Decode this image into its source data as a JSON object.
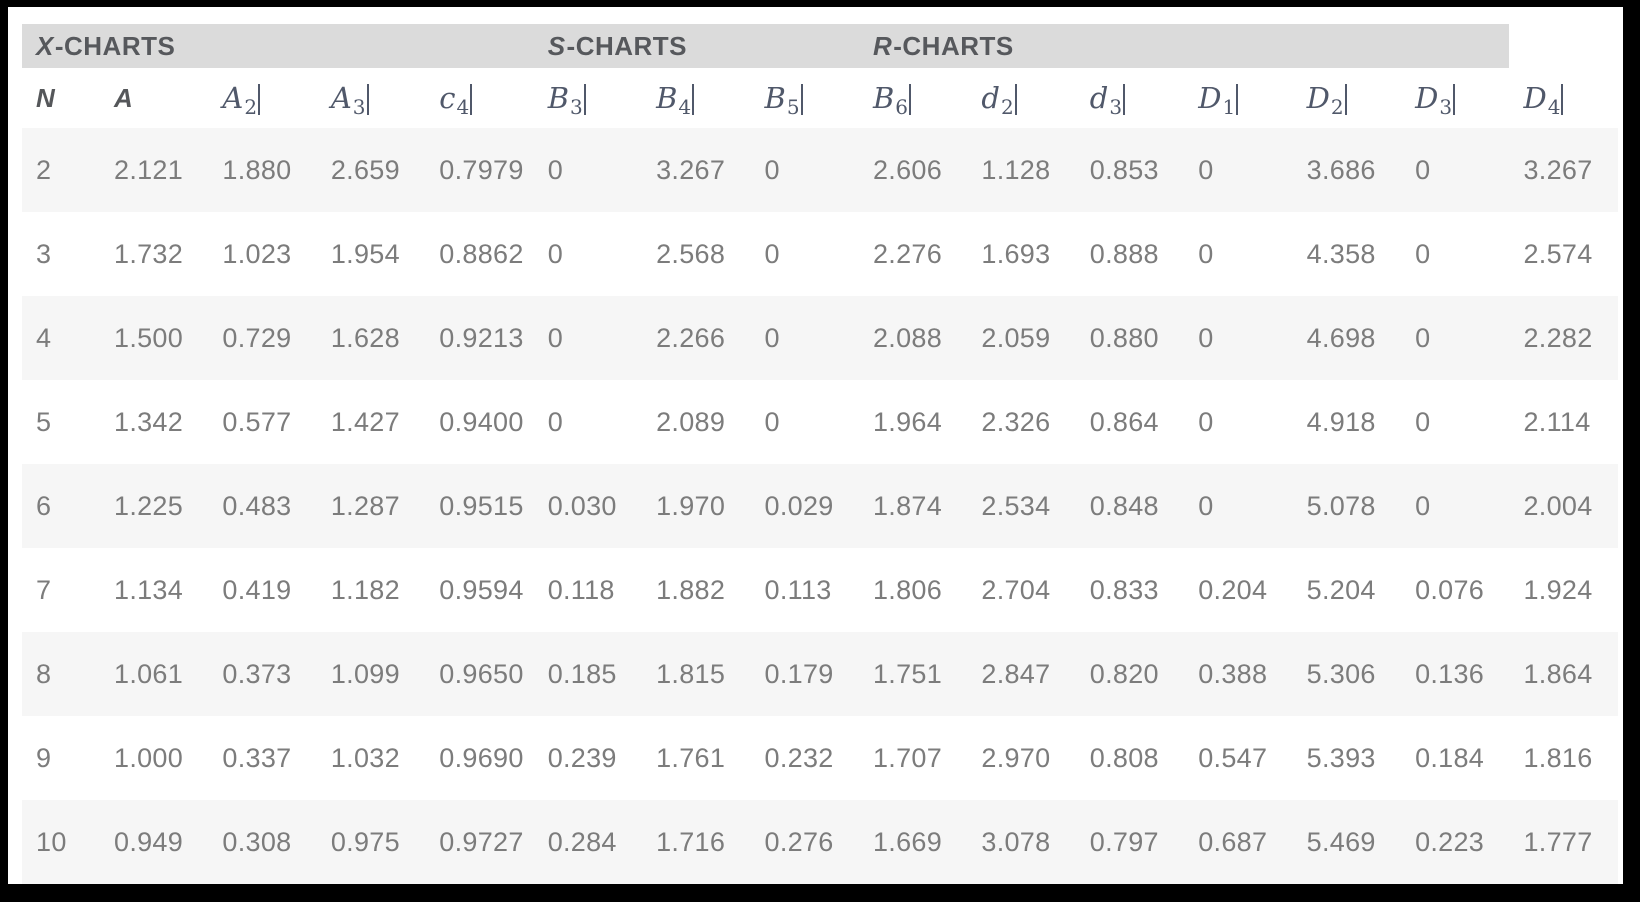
{
  "colors": {
    "frame": "#000000",
    "page": "#ffffff",
    "header_band": "#dbdbdb",
    "row_stripe": "#f6f6f6",
    "group_text": "#56585c",
    "header_text": "#55575a",
    "math_text": "#50586a",
    "data_text": "#7c7c7c"
  },
  "table": {
    "groups": [
      {
        "italic": "X",
        "rest": "-CHARTS",
        "colspan": 5,
        "shaded": true
      },
      {
        "italic": "S",
        "rest": "-CHARTS",
        "colspan": 3,
        "shaded": true
      },
      {
        "italic": "R",
        "rest": "-CHARTS",
        "colspan": 6,
        "shaded": true
      },
      {
        "italic": "",
        "rest": "",
        "colspan": 1,
        "shaded": false
      }
    ],
    "columns": [
      {
        "base": "N",
        "sub": "",
        "style": "sans",
        "bar": false
      },
      {
        "base": "A",
        "sub": "",
        "style": "sans",
        "bar": false
      },
      {
        "base": "A",
        "sub": "2",
        "style": "math",
        "bar": true
      },
      {
        "base": "A",
        "sub": "3",
        "style": "math",
        "bar": true
      },
      {
        "base": "c",
        "sub": "4",
        "style": "math",
        "bar": true
      },
      {
        "base": "B",
        "sub": "3",
        "style": "math",
        "bar": true
      },
      {
        "base": "B",
        "sub": "4",
        "style": "math",
        "bar": true
      },
      {
        "base": "B",
        "sub": "5",
        "style": "math",
        "bar": true
      },
      {
        "base": "B",
        "sub": "6",
        "style": "math",
        "bar": true
      },
      {
        "base": "d",
        "sub": "2",
        "style": "math",
        "bar": true
      },
      {
        "base": "d",
        "sub": "3",
        "style": "math",
        "bar": true
      },
      {
        "base": "D",
        "sub": "1",
        "style": "math",
        "bar": true
      },
      {
        "base": "D",
        "sub": "2",
        "style": "math",
        "bar": true
      },
      {
        "base": "D",
        "sub": "3",
        "style": "math",
        "bar": true
      },
      {
        "base": "D",
        "sub": "4",
        "style": "math",
        "bar": true
      }
    ],
    "rows": [
      [
        "2",
        "2.121",
        "1.880",
        "2.659",
        "0.7979",
        "0",
        "3.267",
        "0",
        "2.606",
        "1.128",
        "0.853",
        "0",
        "3.686",
        "0",
        "3.267"
      ],
      [
        "3",
        "1.732",
        "1.023",
        "1.954",
        "0.8862",
        "0",
        "2.568",
        "0",
        "2.276",
        "1.693",
        "0.888",
        "0",
        "4.358",
        "0",
        "2.574"
      ],
      [
        "4",
        "1.500",
        "0.729",
        "1.628",
        "0.9213",
        "0",
        "2.266",
        "0",
        "2.088",
        "2.059",
        "0.880",
        "0",
        "4.698",
        "0",
        "2.282"
      ],
      [
        "5",
        "1.342",
        "0.577",
        "1.427",
        "0.9400",
        "0",
        "2.089",
        "0",
        "1.964",
        "2.326",
        "0.864",
        "0",
        "4.918",
        "0",
        "2.114"
      ],
      [
        "6",
        "1.225",
        "0.483",
        "1.287",
        "0.9515",
        "0.030",
        "1.970",
        "0.029",
        "1.874",
        "2.534",
        "0.848",
        "0",
        "5.078",
        "0",
        "2.004"
      ],
      [
        "7",
        "1.134",
        "0.419",
        "1.182",
        "0.9594",
        "0.118",
        "1.882",
        "0.113",
        "1.806",
        "2.704",
        "0.833",
        "0.204",
        "5.204",
        "0.076",
        "1.924"
      ],
      [
        "8",
        "1.061",
        "0.373",
        "1.099",
        "0.9650",
        "0.185",
        "1.815",
        "0.179",
        "1.751",
        "2.847",
        "0.820",
        "0.388",
        "5.306",
        "0.136",
        "1.864"
      ],
      [
        "9",
        "1.000",
        "0.337",
        "1.032",
        "0.9690",
        "0.239",
        "1.761",
        "0.232",
        "1.707",
        "2.970",
        "0.808",
        "0.547",
        "5.393",
        "0.184",
        "1.816"
      ],
      [
        "10",
        "0.949",
        "0.308",
        "0.975",
        "0.9727",
        "0.284",
        "1.716",
        "0.276",
        "1.669",
        "3.078",
        "0.797",
        "0.687",
        "5.469",
        "0.223",
        "1.777"
      ]
    ]
  }
}
